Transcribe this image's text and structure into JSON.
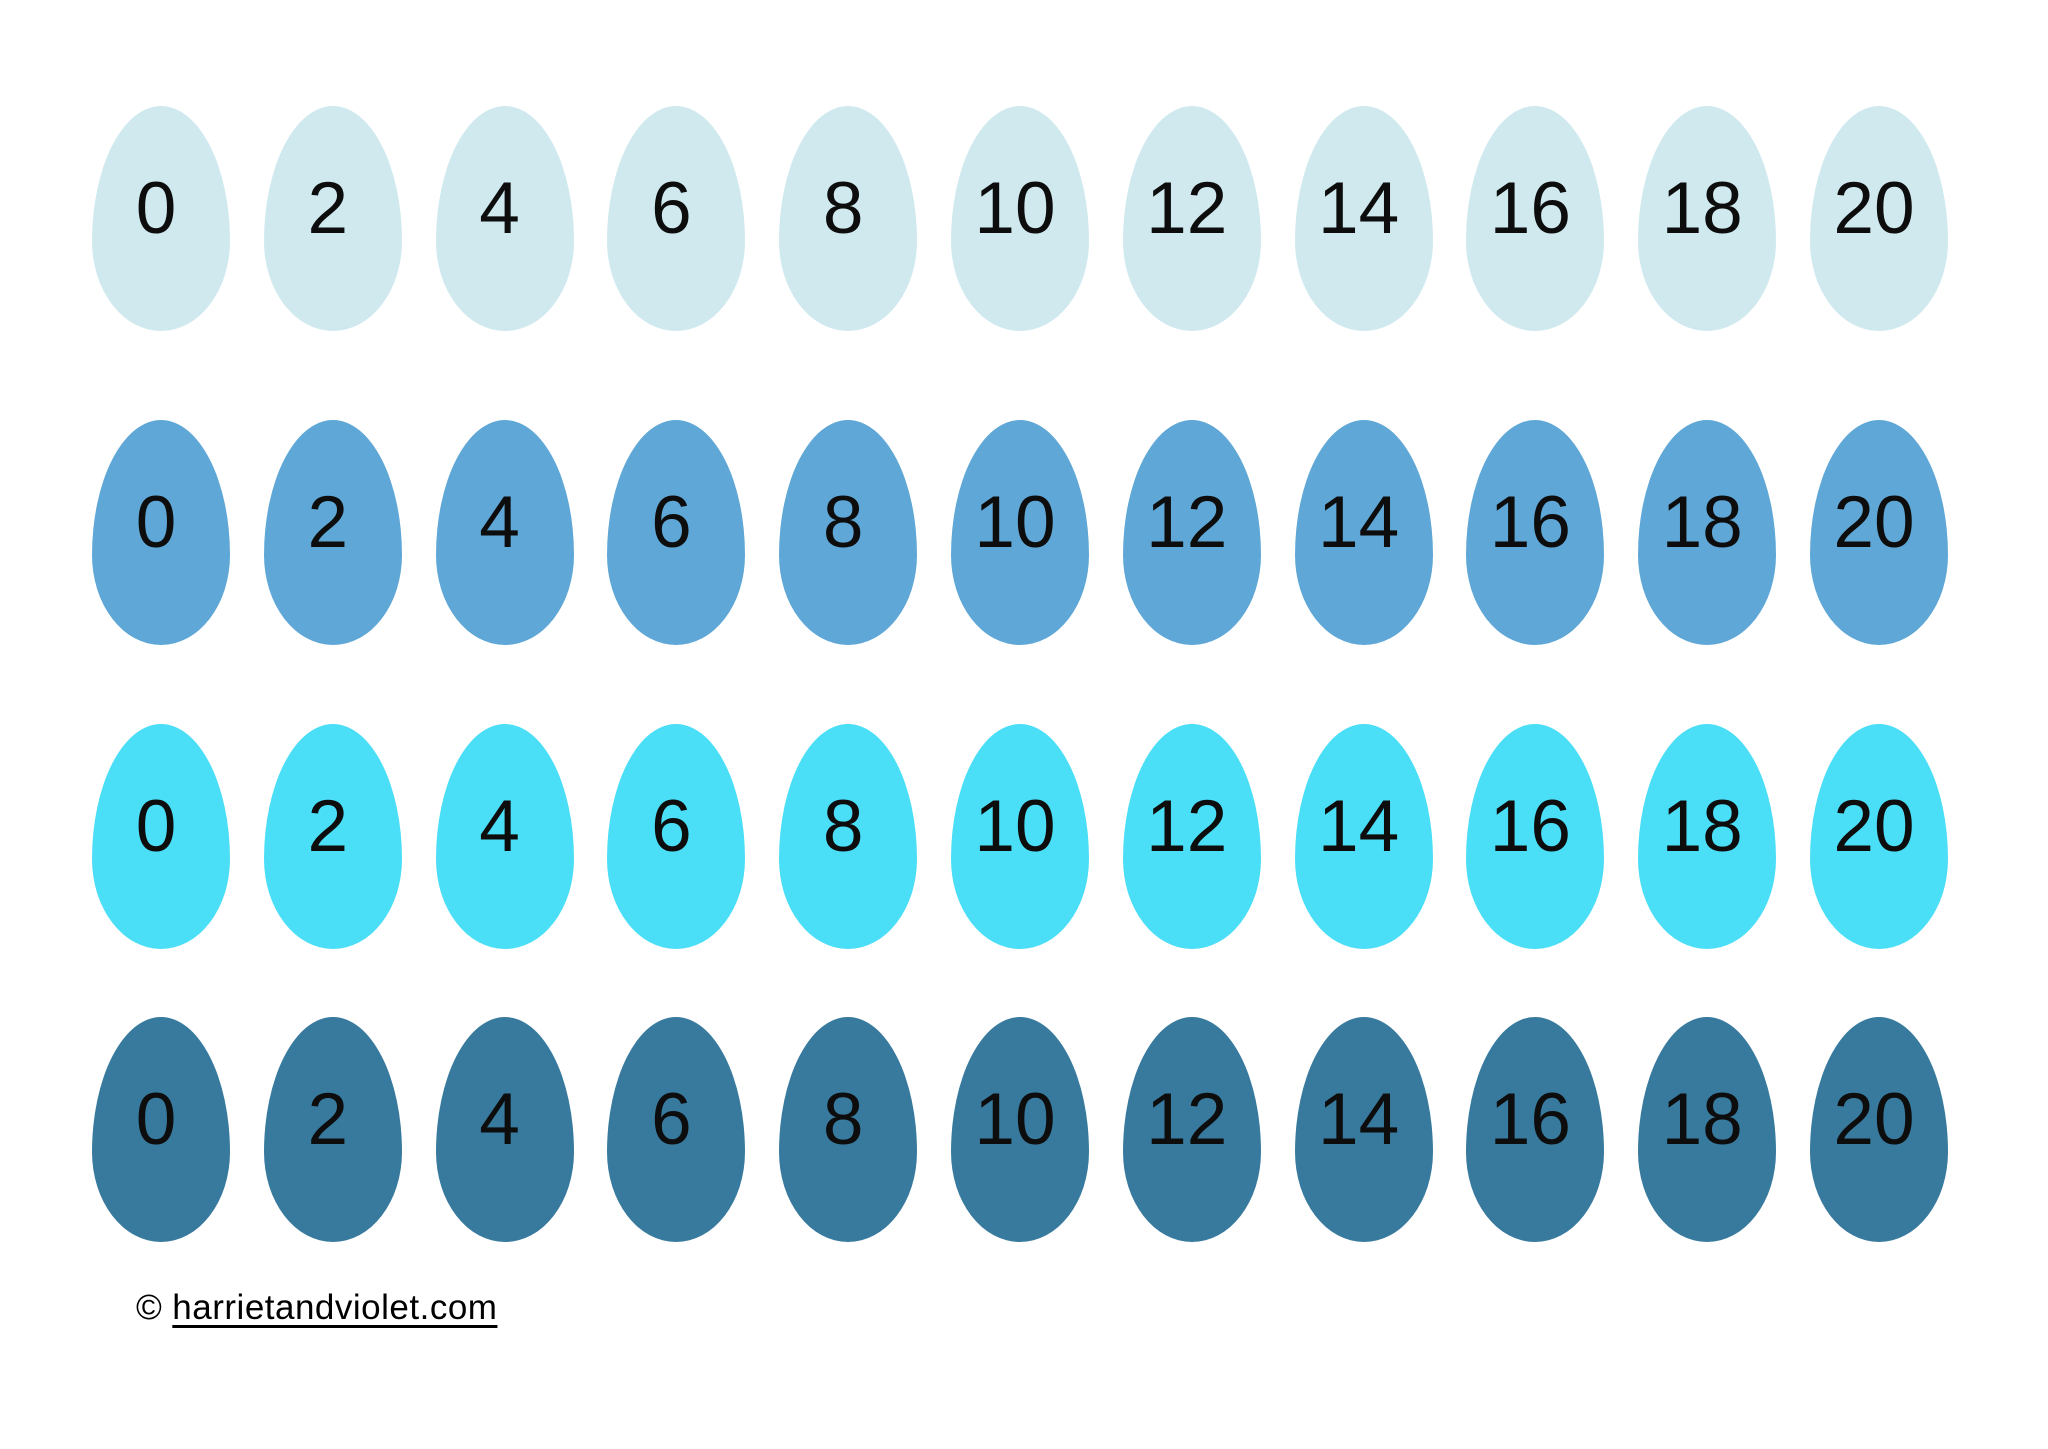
{
  "colors": {
    "background": "#ffffff",
    "number_text": "#0d0d0d"
  },
  "rows": [
    {
      "name": "pale-blue-egg-row",
      "color": "#cfe9ef",
      "numbers": [
        "0",
        "2",
        "4",
        "6",
        "8",
        "10",
        "12",
        "14",
        "16",
        "18",
        "20"
      ]
    },
    {
      "name": "medium-blue-egg-row",
      "color": "#5fa7d6",
      "numbers": [
        "0",
        "2",
        "4",
        "6",
        "8",
        "10",
        "12",
        "14",
        "16",
        "18",
        "20"
      ]
    },
    {
      "name": "cyan-egg-row",
      "color": "#4adef7",
      "numbers": [
        "0",
        "2",
        "4",
        "6",
        "8",
        "10",
        "12",
        "14",
        "16",
        "18",
        "20"
      ]
    },
    {
      "name": "dark-blue-egg-row",
      "color": "#387a9e",
      "numbers": [
        "0",
        "2",
        "4",
        "6",
        "8",
        "10",
        "12",
        "14",
        "16",
        "18",
        "20"
      ]
    }
  ],
  "footer": {
    "copyright_symbol": "©",
    "link_text": "harrietandviolet.com"
  }
}
